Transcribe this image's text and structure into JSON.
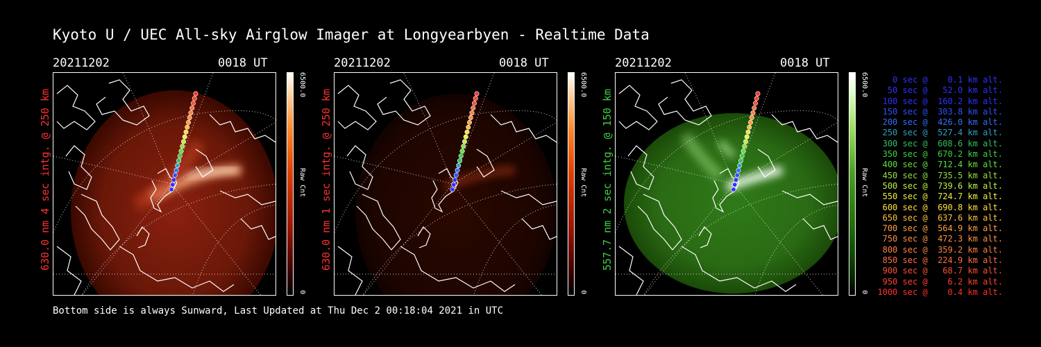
{
  "title": "Kyoto U / UEC All-sky Airglow Imager at Longyearbyen - Realtime Data",
  "footer": "Bottom side is always Sunward, Last Updated at Thu Dec  2 00:18:04 2021 in UTC",
  "colors": {
    "red_label": "#ff3030",
    "green_label": "#40d040"
  },
  "panels": [
    {
      "date": "20211202",
      "time": "0018 UT",
      "ylabel": "630.0 nm 4 sec intg. @ 250 km",
      "colorbar_max": "6500.0",
      "colorbar_min": "0",
      "colorbar_label": "Raw Cnt",
      "color": "red"
    },
    {
      "date": "20211202",
      "time": "0018 UT",
      "ylabel": "630.0 nm 1 sec intg. @ 250 km",
      "colorbar_max": "6500.0",
      "colorbar_min": "0",
      "colorbar_label": "Raw Cnt",
      "color": "red"
    },
    {
      "date": "20211202",
      "time": "0018 UT",
      "ylabel": "557.7 nm 2 sec intg. @ 150 km",
      "colorbar_max": "6500.0",
      "colorbar_min": "0",
      "colorbar_label": "Raw Cnt",
      "color": "green"
    }
  ],
  "legend": [
    {
      "text": "   0 sec @    0.1 km alt.",
      "color": "#3030ff"
    },
    {
      "text": "  50 sec @   52.0 km alt.",
      "color": "#3030ff"
    },
    {
      "text": " 100 sec @  160.2 km alt.",
      "color": "#3030ff"
    },
    {
      "text": " 150 sec @  303.8 km alt.",
      "color": "#3050ff"
    },
    {
      "text": " 200 sec @  426.0 km alt.",
      "color": "#3070ff"
    },
    {
      "text": " 250 sec @  527.4 km alt.",
      "color": "#30a0c0"
    },
    {
      "text": " 300 sec @  608.6 km alt.",
      "color": "#30c060"
    },
    {
      "text": " 350 sec @  670.2 km alt.",
      "color": "#40d040"
    },
    {
      "text": " 400 sec @  712.4 km alt.",
      "color": "#60e040"
    },
    {
      "text": " 450 sec @  735.5 km alt.",
      "color": "#90e040"
    },
    {
      "text": " 500 sec @  739.6 km alt.",
      "color": "#c0f040"
    },
    {
      "text": " 550 sec @  724.7 km alt.",
      "color": "#f0f040"
    },
    {
      "text": " 600 sec @  690.8 km alt.",
      "color": "#ffe040"
    },
    {
      "text": " 650 sec @  637.6 km alt.",
      "color": "#ffc040"
    },
    {
      "text": " 700 sec @  564.9 km alt.",
      "color": "#ffa040"
    },
    {
      "text": " 750 sec @  472.3 km alt.",
      "color": "#ff9040"
    },
    {
      "text": " 800 sec @  359.2 km alt.",
      "color": "#ff8040"
    },
    {
      "text": " 850 sec @  224.9 km alt.",
      "color": "#ff7040"
    },
    {
      "text": " 900 sec @   68.7 km alt.",
      "color": "#ff5030"
    },
    {
      "text": " 950 sec @    6.2 km alt.",
      "color": "#ff4030"
    },
    {
      "text": "1000 sec @    0.4 km alt.",
      "color": "#ff3030"
    }
  ]
}
